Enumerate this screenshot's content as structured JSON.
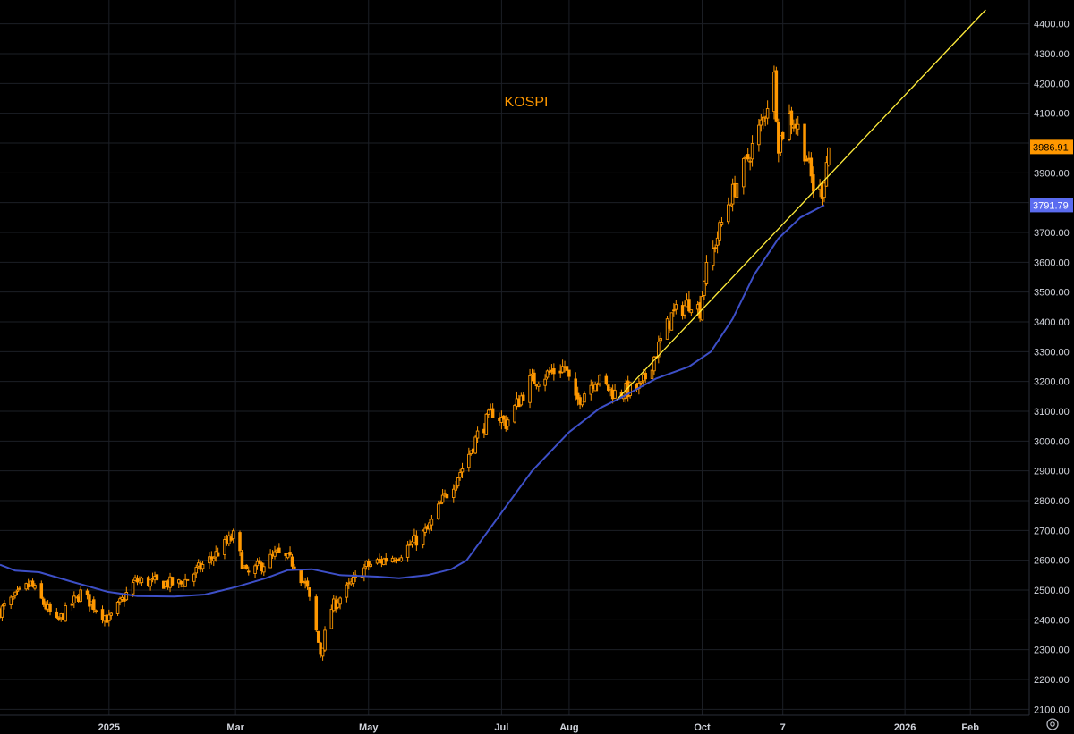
{
  "chart_data": {
    "type": "candlestick",
    "title": "KOSPI",
    "grid": true,
    "xlim": [
      "2024-11-13",
      "2026-02-28"
    ],
    "ylim": [
      2080,
      4480
    ],
    "x_ticks": [
      {
        "label": "2025",
        "date": "2025-01-02"
      },
      {
        "label": "Mar",
        "date": "2025-03-01"
      },
      {
        "label": "May",
        "date": "2025-05-01"
      },
      {
        "label": "Jul",
        "date": "2025-07-01"
      },
      {
        "label": "Aug",
        "date": "2025-08-01"
      },
      {
        "label": "Oct",
        "date": "2025-10-01"
      },
      {
        "label": "7",
        "date": "2025-11-07"
      },
      {
        "label": "2026",
        "date": "2026-01-02"
      },
      {
        "label": "Feb",
        "date": "2026-02-01"
      }
    ],
    "y_ticks": [
      "2100.00",
      "2200.00",
      "2300.00",
      "2400.00",
      "2500.00",
      "2600.00",
      "2700.00",
      "2800.00",
      "2900.00",
      "3000.00",
      "3100.00",
      "3200.00",
      "3300.00",
      "3400.00",
      "3500.00",
      "3600.00",
      "3700.00",
      "3800.00",
      "3900.00",
      "4000.00",
      "4100.00",
      "4200.00",
      "4300.00",
      "4400.00"
    ],
    "y_tick_values": [
      2100,
      2200,
      2300,
      2400,
      2500,
      2600,
      2700,
      2800,
      2900,
      3000,
      3100,
      3200,
      3300,
      3400,
      3500,
      3600,
      3700,
      3800,
      3900,
      4000,
      4100,
      4200,
      4300,
      4400
    ],
    "price_anchors": [
      [
        "2024-11-13",
        2430
      ],
      [
        "2024-11-27",
        2520
      ],
      [
        "2024-12-09",
        2390
      ],
      [
        "2024-12-20",
        2490
      ],
      [
        "2025-01-02",
        2400
      ],
      [
        "2025-01-14",
        2530
      ],
      [
        "2025-02-04",
        2520
      ],
      [
        "2025-02-20",
        2620
      ],
      [
        "2025-02-28",
        2680
      ],
      [
        "2025-03-06",
        2550
      ],
      [
        "2025-03-20",
        2620
      ],
      [
        "2025-03-28",
        2590
      ],
      [
        "2025-04-03",
        2500
      ],
      [
        "2025-04-09",
        2290
      ],
      [
        "2025-04-14",
        2440
      ],
      [
        "2025-04-30",
        2580
      ],
      [
        "2025-05-15",
        2620
      ],
      [
        "2025-05-28",
        2700
      ],
      [
        "2025-06-04",
        2800
      ],
      [
        "2025-06-13",
        2910
      ],
      [
        "2025-06-20",
        3020
      ],
      [
        "2025-06-27",
        3100
      ],
      [
        "2025-07-03",
        3060
      ],
      [
        "2025-07-14",
        3200
      ],
      [
        "2025-07-30",
        3250
      ],
      [
        "2025-08-04",
        3130
      ],
      [
        "2025-08-13",
        3210
      ],
      [
        "2025-08-22",
        3160
      ],
      [
        "2025-09-03",
        3180
      ],
      [
        "2025-09-10",
        3300
      ],
      [
        "2025-09-17",
        3420
      ],
      [
        "2025-09-26",
        3470
      ],
      [
        "2025-09-30",
        3440
      ],
      [
        "2025-10-02",
        3550
      ],
      [
        "2025-10-13",
        3800
      ],
      [
        "2025-10-22",
        3950
      ],
      [
        "2025-10-29",
        4080
      ],
      [
        "2025-11-03",
        4220
      ],
      [
        "2025-11-05",
        4000
      ],
      [
        "2025-11-10",
        4090
      ],
      [
        "2025-11-14",
        4050
      ],
      [
        "2025-11-18",
        3950
      ],
      [
        "2025-11-21",
        3850
      ],
      [
        "2025-11-25",
        3840
      ],
      [
        "2025-11-28",
        3986.91
      ]
    ],
    "series": [
      {
        "name": "",
        "type": "moving_average",
        "color": "#3d4fc7",
        "last_value": "3791.79",
        "points": [
          [
            "2024-11-13",
            2585
          ],
          [
            "2024-11-20",
            2565
          ],
          [
            "2024-12-01",
            2560
          ],
          [
            "2024-12-15",
            2530
          ],
          [
            "2025-01-01",
            2495
          ],
          [
            "2025-01-15",
            2480
          ],
          [
            "2025-02-01",
            2478
          ],
          [
            "2025-02-15",
            2485
          ],
          [
            "2025-03-01",
            2510
          ],
          [
            "2025-03-15",
            2540
          ],
          [
            "2025-03-25",
            2567
          ],
          [
            "2025-04-05",
            2570
          ],
          [
            "2025-04-18",
            2550
          ],
          [
            "2025-05-05",
            2545
          ],
          [
            "2025-05-15",
            2540
          ],
          [
            "2025-05-28",
            2550
          ],
          [
            "2025-06-08",
            2570
          ],
          [
            "2025-06-15",
            2600
          ],
          [
            "2025-06-22",
            2670
          ],
          [
            "2025-07-01",
            2760
          ],
          [
            "2025-07-15",
            2900
          ],
          [
            "2025-08-01",
            3030
          ],
          [
            "2025-08-15",
            3110
          ],
          [
            "2025-08-26",
            3150
          ],
          [
            "2025-09-10",
            3210
          ],
          [
            "2025-09-25",
            3250
          ],
          [
            "2025-10-05",
            3300
          ],
          [
            "2025-10-15",
            3410
          ],
          [
            "2025-10-25",
            3560
          ],
          [
            "2025-11-05",
            3680
          ],
          [
            "2025-11-15",
            3750
          ],
          [
            "2025-11-26",
            3791.79
          ]
        ]
      },
      {
        "name": "",
        "type": "trendline",
        "color": "#ffeb3b",
        "points": [
          [
            "2025-08-23",
            3140
          ],
          [
            "2026-02-08",
            4447
          ]
        ]
      }
    ],
    "last_price": "3986.91",
    "last_price_color": "#ff9800",
    "candle_color": "#ff9800",
    "grid_color": "#1c1f26",
    "background": "#000000"
  }
}
